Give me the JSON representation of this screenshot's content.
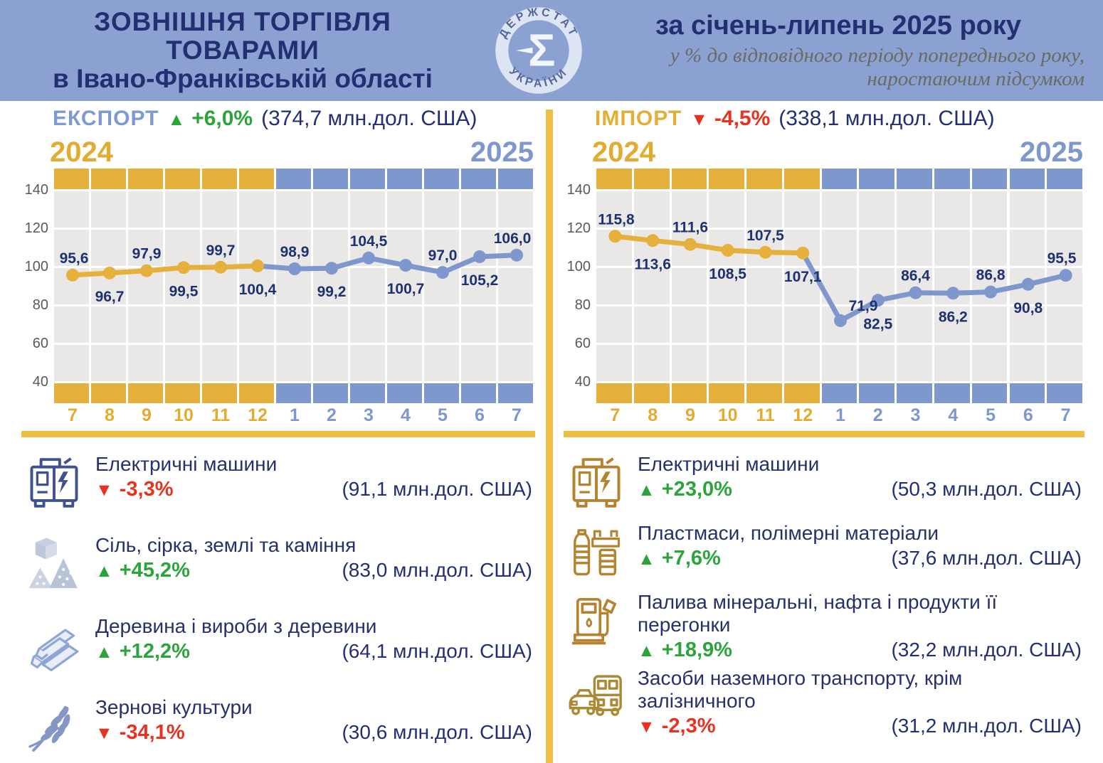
{
  "colors": {
    "header_bg": "#8BA1D2",
    "navy": "#232F72",
    "label_navy": "#1E3170",
    "gold_band": "#E5B13C",
    "gold_text": "#E2AC33",
    "gold_bar": "#EFBE45",
    "blue_band": "#7E97CC",
    "plot_bg": "#E9E8E7",
    "axis_gray": "#595959",
    "green": "#2CA43C",
    "red": "#E8321F"
  },
  "icons": {
    "up_arrow": "▲",
    "down_arrow": "▼"
  },
  "header": {
    "title1": "ЗОВНІШНЯ ТОРГІВЛЯ",
    "title2": "ТОВАРАМИ",
    "title3": "в Івано-Франківській області",
    "period": "за січень-липень 2025 року",
    "subtitle1": "у % до відповідного періоду попереднього  року,",
    "subtitle2": "наростаючим підсумком",
    "logo_top": "ДЕРЖСТАТ",
    "logo_bottom": "УКРАЇНИ",
    "logo_glyph": "Σ"
  },
  "export": {
    "label": "ЕКСПОРТ",
    "trend": "up",
    "change": "+6,0%",
    "total": "(374,7 млн.дол.  США)",
    "year_left": "2024",
    "year_right": "2025",
    "items": [
      {
        "name": "Електричні машини",
        "trend": "down",
        "change": "-3,3%",
        "value": "(91,1 млн.дол. США)"
      },
      {
        "name": "Сіль, сірка, землі та каміння",
        "trend": "up",
        "change": "+45,2%",
        "value": "(83,0 млн.дол. США)"
      },
      {
        "name": "Деревина і вироби з деревини",
        "trend": "up",
        "change": "+12,2%",
        "value": "(64,1 млн.дол. США)"
      },
      {
        "name": "Зернові культури",
        "trend": "down",
        "change": "-34,1%",
        "value": "(30,6 млн.дол. США)"
      }
    ]
  },
  "import": {
    "label": "ІМПОРТ",
    "trend": "down",
    "change": "-4,5%",
    "total": "(338,1 млн.дол.  США)",
    "year_left": "2024",
    "year_right": "2025",
    "items": [
      {
        "name": "Електричні машини",
        "trend": "up",
        "change": "+23,0%",
        "value": "(50,3 млн.дол. США)"
      },
      {
        "name": "Пластмаси, полімерні матеріали",
        "trend": "up",
        "change": "+7,6%",
        "value": "(37,6 млн.дол. США)"
      },
      {
        "name": "Палива мінеральні, нафта і продукти її перегонки",
        "trend": "up",
        "change": "+18,9%",
        "value": "(32,2 млн.дол. США)"
      },
      {
        "name": "Засоби наземного транспорту, крім залізничного",
        "trend": "down",
        "change": "-2,3%",
        "value": "(31,2 млн.дол. США)"
      }
    ]
  },
  "chart_data": [
    {
      "id": "export",
      "type": "line",
      "title": "ЕКСПОРТ, у % до відповідного періоду попереднього року",
      "x": [
        "7",
        "8",
        "9",
        "10",
        "11",
        "12",
        "1",
        "2",
        "3",
        "4",
        "5",
        "6",
        "7"
      ],
      "values": [
        95.6,
        96.7,
        97.9,
        99.5,
        99.7,
        100.4,
        98.9,
        99.2,
        104.5,
        100.7,
        97.0,
        105.2,
        106.0
      ],
      "labels": [
        "95,6",
        "96,7",
        "97,9",
        "99,5",
        "99,7",
        "100,4",
        "98,9",
        "99,2",
        "104,5",
        "100,7",
        "97,0",
        "105,2",
        "106,0"
      ],
      "label_pos": [
        "above",
        "below",
        "above",
        "below",
        "above",
        "below",
        "above",
        "below",
        "above",
        "below",
        "above",
        "below",
        "above"
      ],
      "split": 6,
      "ylim": [
        30,
        150
      ],
      "yticks": [
        140,
        120,
        100,
        80,
        60,
        40
      ],
      "grid": true,
      "legend": "none",
      "colors": {
        "c2024": "#E5B13C",
        "c2025": "#7E97CC",
        "t2024": "#E2AC33",
        "t2025": "#7E97CC"
      }
    },
    {
      "id": "import",
      "type": "line",
      "title": "ІМПОРТ, у % до відповідного періоду попереднього року",
      "x": [
        "7",
        "8",
        "9",
        "10",
        "11",
        "12",
        "1",
        "2",
        "3",
        "4",
        "5",
        "6",
        "7"
      ],
      "values": [
        115.8,
        113.6,
        111.6,
        108.5,
        107.5,
        107.1,
        71.9,
        82.5,
        86.4,
        86.2,
        86.8,
        90.8,
        95.5
      ],
      "labels": [
        "115,8",
        "113,6",
        "111,6",
        "108,5",
        "107,5",
        "107,1",
        "71,9",
        "82,5",
        "86,4",
        "86,2",
        "86,8",
        "90,8",
        "95,5"
      ],
      "label_pos": [
        "above",
        "below",
        "above",
        "below",
        "above",
        "below",
        "above-right",
        "below",
        "above",
        "below",
        "above",
        "below",
        "above"
      ],
      "split": 6,
      "ylim": [
        30,
        150
      ],
      "yticks": [
        140,
        120,
        100,
        80,
        60,
        40
      ],
      "grid": true,
      "legend": "none",
      "colors": {
        "c2024": "#E5B13C",
        "c2025": "#7E97CC",
        "t2024": "#E2AC33",
        "t2025": "#7E97CC"
      }
    }
  ]
}
